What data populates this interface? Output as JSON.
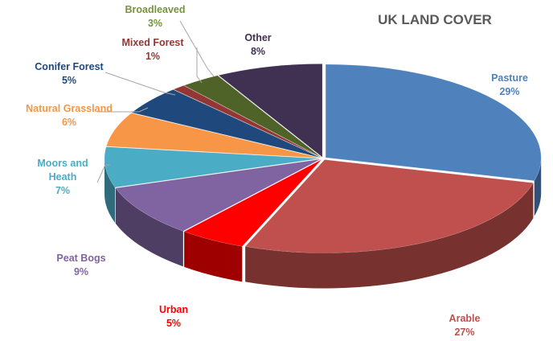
{
  "chart_data": {
    "type": "pie",
    "style": "3d-exploded",
    "title": "UK LAND COVER",
    "slices": [
      {
        "name": "Pasture",
        "value": 29,
        "label": "29%",
        "color": "#4F81BD"
      },
      {
        "name": "Arable",
        "value": 27,
        "label": "27%",
        "color": "#C0504D"
      },
      {
        "name": "Urban",
        "value": 5,
        "label": "5%",
        "color": "#FF0000"
      },
      {
        "name": "Peat Bogs",
        "value": 9,
        "label": "9%",
        "color": "#8064A2"
      },
      {
        "name": "Moors and Heath",
        "value": 7,
        "label": "7%",
        "color": "#4BACC6"
      },
      {
        "name": "Natural Grassland",
        "value": 6,
        "label": "6%",
        "color": "#F79646"
      },
      {
        "name": "Conifer Forest",
        "value": 5,
        "label": "5%",
        "color": "#1F497D"
      },
      {
        "name": "Mixed Forest",
        "value": 1,
        "label": "1%",
        "color": "#943634"
      },
      {
        "name": "Broadleaved",
        "value": 3,
        "label": "3%",
        "color": "#4F6228"
      },
      {
        "name": "Other",
        "value": 8,
        "label": "8%",
        "color": "#403152"
      }
    ],
    "label_colors": {
      "Pasture": "#4F81BD",
      "Arable": "#C0504D",
      "Urban": "#FF0000",
      "Peat Bogs": "#8064A2",
      "Moors and Heath": "#4BACC6",
      "Natural Grassland": "#F79646",
      "Conifer Forest": "#1F497D",
      "Mixed Forest": "#943634",
      "Broadleaved": "#77933C",
      "Other": "#403152"
    }
  }
}
